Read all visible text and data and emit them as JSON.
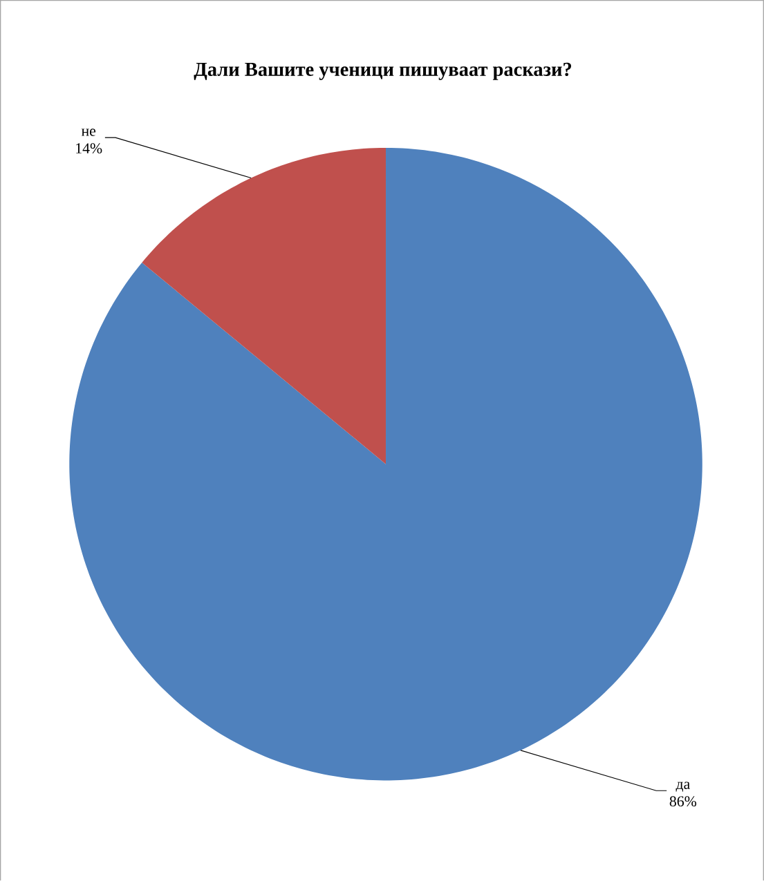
{
  "chart_data": {
    "type": "pie",
    "title": "Дали Вашите ученици пишуваат раскази?",
    "categories": [
      "да",
      "не"
    ],
    "values": [
      86,
      14
    ],
    "value_labels": [
      "86%",
      "14%"
    ],
    "colors": [
      "#4f81bd",
      "#c0504d"
    ]
  }
}
